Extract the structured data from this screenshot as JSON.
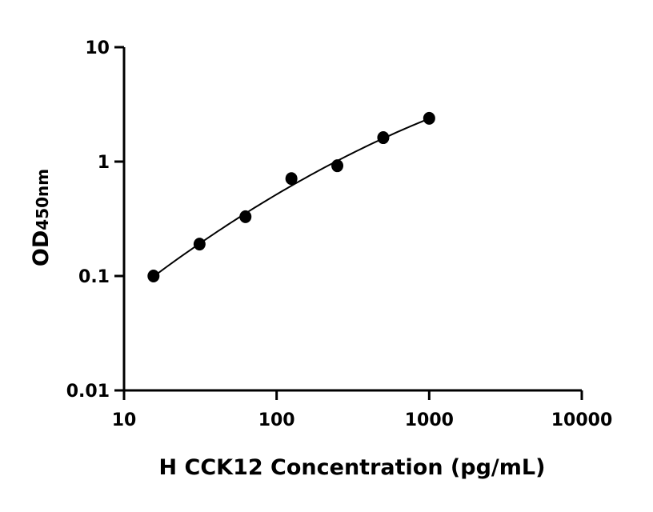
{
  "chart_data": {
    "type": "scatter",
    "title": "",
    "xlabel": "H CCK12 Concentration (pg/mL)",
    "ylabel_main": "OD",
    "ylabel_sub": "450nm",
    "xscale": "log",
    "yscale": "log",
    "xlim": [
      10,
      10000
    ],
    "ylim": [
      0.01,
      10
    ],
    "xticks": [
      "10",
      "100",
      "1000",
      "10000"
    ],
    "yticks": [
      "0.01",
      "0.1",
      "1",
      "10"
    ],
    "grid": false,
    "legend": "none",
    "fit_line": true,
    "color": "#000000",
    "x": [
      15.6,
      31.25,
      62.5,
      125,
      250,
      500,
      1000
    ],
    "y": [
      0.1,
      0.19,
      0.33,
      0.71,
      0.92,
      1.62,
      2.39
    ]
  }
}
